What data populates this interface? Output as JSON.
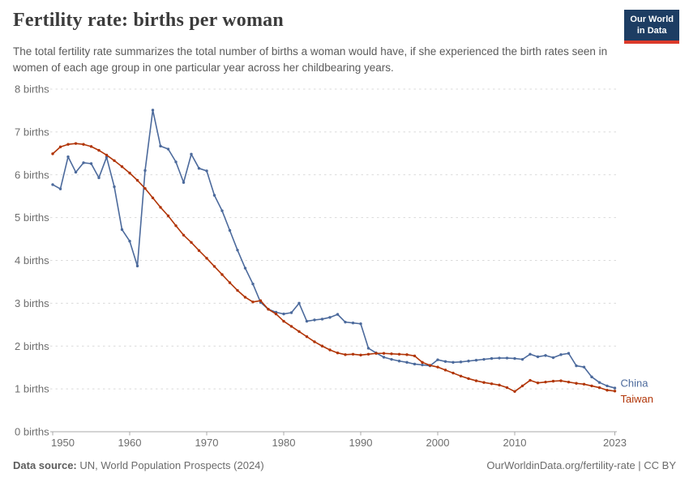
{
  "header": {
    "title": "Fertility rate: births per woman",
    "subtitle": "The total fertility rate summarizes the total number of births a woman would have, if she experienced the birth rates seen in women of each age group in one particular year across her childbearing years.",
    "logo": {
      "line1": "Our World",
      "line2": "in Data",
      "bg": "#1d3d63",
      "accent": "#dc3a2a"
    }
  },
  "chart_data": {
    "type": "line",
    "title": "Fertility rate: births per woman",
    "xlabel": "",
    "ylabel": "births",
    "xlim": [
      1950,
      2023
    ],
    "ylim": [
      0,
      8
    ],
    "grid": "horizontal-dashed",
    "legend": "end-of-line-labels",
    "xticks": [
      1950,
      1960,
      1970,
      1980,
      1990,
      2000,
      2010,
      2023
    ],
    "yticks": [
      {
        "value": 0,
        "label": "0 births"
      },
      {
        "value": 1,
        "label": "1 births"
      },
      {
        "value": 2,
        "label": "2 births"
      },
      {
        "value": 3,
        "label": "3 births"
      },
      {
        "value": 4,
        "label": "4 births"
      },
      {
        "value": 5,
        "label": "5 births"
      },
      {
        "value": 6,
        "label": "6 births"
      },
      {
        "value": 7,
        "label": "7 births"
      },
      {
        "value": 8,
        "label": "8 births"
      }
    ],
    "years": [
      1950,
      1951,
      1952,
      1953,
      1954,
      1955,
      1956,
      1957,
      1958,
      1959,
      1960,
      1961,
      1962,
      1963,
      1964,
      1965,
      1966,
      1967,
      1968,
      1969,
      1970,
      1971,
      1972,
      1973,
      1974,
      1975,
      1976,
      1977,
      1978,
      1979,
      1980,
      1981,
      1982,
      1983,
      1984,
      1985,
      1986,
      1987,
      1988,
      1989,
      1990,
      1991,
      1992,
      1993,
      1994,
      1995,
      1996,
      1997,
      1998,
      1999,
      2000,
      2001,
      2002,
      2003,
      2004,
      2005,
      2006,
      2007,
      2008,
      2009,
      2010,
      2011,
      2012,
      2013,
      2014,
      2015,
      2016,
      2017,
      2018,
      2019,
      2020,
      2021,
      2022,
      2023
    ],
    "series": [
      {
        "name": "China",
        "color": "#4C6A9C",
        "values": [
          5.77,
          5.67,
          6.42,
          6.06,
          6.28,
          6.26,
          5.93,
          6.41,
          5.72,
          4.72,
          4.45,
          3.87,
          6.1,
          7.51,
          6.67,
          6.6,
          6.3,
          5.82,
          6.48,
          6.15,
          6.09,
          5.52,
          5.16,
          4.7,
          4.24,
          3.82,
          3.45,
          3.02,
          2.86,
          2.79,
          2.75,
          2.78,
          3.0,
          2.58,
          2.61,
          2.63,
          2.67,
          2.74,
          2.56,
          2.54,
          2.52,
          1.95,
          1.84,
          1.74,
          1.69,
          1.65,
          1.62,
          1.58,
          1.56,
          1.54,
          1.68,
          1.64,
          1.62,
          1.63,
          1.65,
          1.67,
          1.69,
          1.71,
          1.72,
          1.72,
          1.71,
          1.69,
          1.81,
          1.75,
          1.78,
          1.73,
          1.8,
          1.83,
          1.54,
          1.51,
          1.28,
          1.15,
          1.07,
          1.02
        ]
      },
      {
        "name": "Taiwan",
        "color": "#B13507",
        "values": [
          6.49,
          6.65,
          6.71,
          6.73,
          6.71,
          6.66,
          6.57,
          6.46,
          6.33,
          6.19,
          6.04,
          5.87,
          5.68,
          5.46,
          5.24,
          5.04,
          4.81,
          4.59,
          4.42,
          4.23,
          4.05,
          3.86,
          3.67,
          3.48,
          3.3,
          3.14,
          3.03,
          3.06,
          2.86,
          2.75,
          2.58,
          2.46,
          2.34,
          2.22,
          2.1,
          2.0,
          1.91,
          1.84,
          1.8,
          1.81,
          1.79,
          1.81,
          1.83,
          1.83,
          1.82,
          1.81,
          1.8,
          1.77,
          1.62,
          1.55,
          1.51,
          1.44,
          1.37,
          1.3,
          1.24,
          1.19,
          1.15,
          1.12,
          1.09,
          1.03,
          0.94,
          1.07,
          1.2,
          1.14,
          1.16,
          1.18,
          1.19,
          1.16,
          1.13,
          1.11,
          1.07,
          1.03,
          0.97,
          0.95
        ]
      }
    ]
  },
  "footer": {
    "source_label": "Data source:",
    "source_value": " UN, World Population Prospects (2024)",
    "link": "OurWorldinData.org/fertility-rate | CC BY"
  }
}
